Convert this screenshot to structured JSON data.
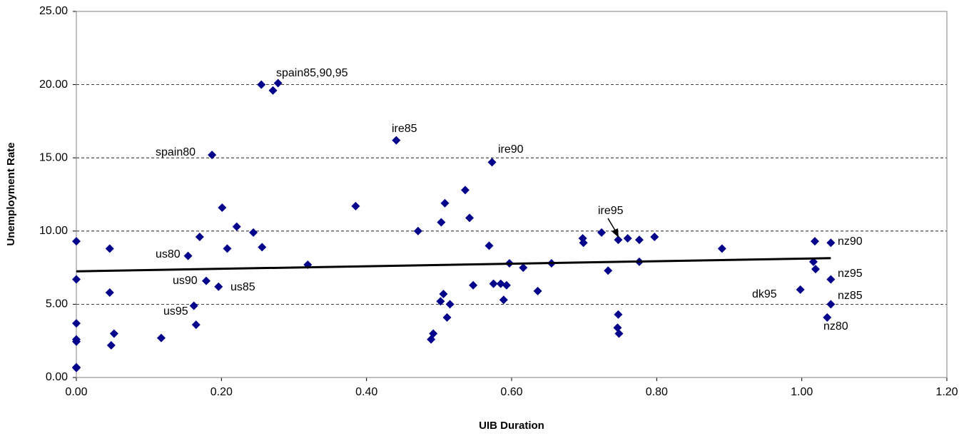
{
  "chart_data": {
    "type": "scatter",
    "x_label": "UIB Duration",
    "y_label": "Unemployment Rate",
    "xlim": [
      0,
      1.2
    ],
    "ylim": [
      0,
      25
    ],
    "xticks": [
      {
        "value": 0,
        "label": "0.00"
      },
      {
        "value": 0.2,
        "label": "0.20"
      },
      {
        "value": 0.4,
        "label": "0.40"
      },
      {
        "value": 0.6,
        "label": "0.60"
      },
      {
        "value": 0.8,
        "label": "0.80"
      },
      {
        "value": 1,
        "label": "1.00"
      },
      {
        "value": 1.2,
        "label": "1.20"
      }
    ],
    "yticks": [
      {
        "value": 0,
        "label": "0.00"
      },
      {
        "value": 5,
        "label": "5.00"
      },
      {
        "value": 10,
        "label": "10.00"
      },
      {
        "value": 15,
        "label": "15.00"
      },
      {
        "value": 20,
        "label": "20.00"
      },
      {
        "value": 25,
        "label": "25.00"
      }
    ],
    "grid": true,
    "color": "#00008b",
    "x": [
      0,
      0,
      0,
      0,
      0,
      0,
      0,
      0.046,
      0.046,
      0.048,
      0.052,
      0.117,
      0.154,
      0.179,
      0.162,
      0.165,
      0.17,
      0.187,
      0.196,
      0.201,
      0.208,
      0.221,
      0.244,
      0.255,
      0.256,
      0.271,
      0.278,
      0.319,
      0.385,
      0.441,
      0.471,
      0.489,
      0.492,
      0.502,
      0.503,
      0.506,
      0.508,
      0.511,
      0.515,
      0.536,
      0.542,
      0.547,
      0.569,
      0.573,
      0.575,
      0.585,
      0.589,
      0.593,
      0.597,
      0.616,
      0.636,
      0.655,
      0.698,
      0.699,
      0.724,
      0.733,
      0.747,
      0.747,
      0.746,
      0.748,
      0.76,
      0.776,
      0.776,
      0.797,
      0.89,
      0.998,
      1.018,
      1.016,
      1.019,
      1.04,
      1.04,
      1.04,
      1.035
    ],
    "values": [
      9.3,
      6.7,
      3.7,
      2.6,
      2.45,
      0.7,
      0.65,
      8.8,
      5.8,
      2.2,
      3.0,
      2.7,
      8.3,
      6.6,
      4.9,
      3.6,
      9.6,
      15.2,
      6.2,
      11.6,
      8.8,
      10.3,
      9.9,
      20.0,
      8.9,
      19.6,
      20.1,
      7.7,
      11.7,
      16.2,
      10.0,
      2.6,
      3.0,
      5.2,
      10.6,
      5.7,
      11.9,
      4.1,
      5.0,
      12.8,
      10.9,
      6.3,
      9.0,
      14.7,
      6.4,
      6.4,
      5.3,
      6.3,
      7.8,
      7.5,
      5.9,
      7.8,
      9.5,
      9.2,
      9.9,
      7.3,
      9.4,
      4.3,
      3.4,
      3.0,
      9.5,
      9.4,
      7.9,
      9.6,
      8.8,
      6.0,
      9.3,
      7.9,
      7.4,
      6.7,
      9.2,
      5.0,
      4.1
    ],
    "trendline": {
      "x": [
        0,
        1.04
      ],
      "y": [
        7.25,
        8.15
      ]
    },
    "annotations": [
      "spain85,90,95",
      "ire85",
      "spain80",
      "ire90",
      "ire95",
      "us80",
      "us90",
      "us85",
      "us95",
      "nz90",
      "nz95",
      "dk95",
      "nz85",
      "nz80"
    ]
  }
}
